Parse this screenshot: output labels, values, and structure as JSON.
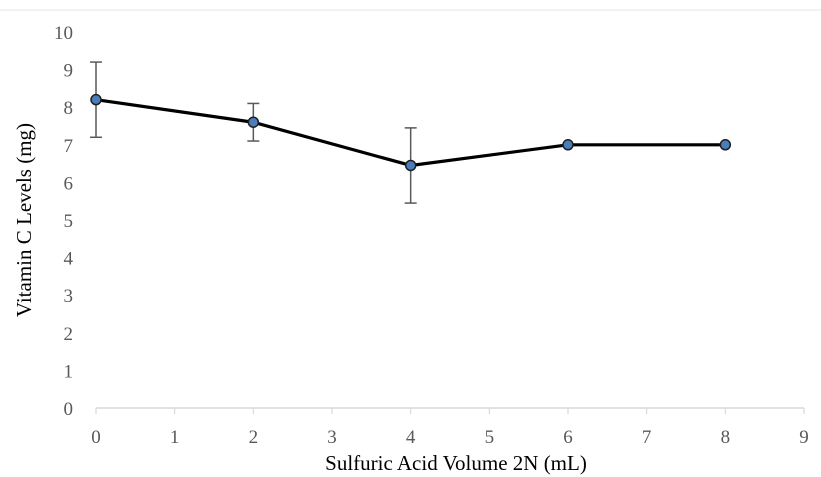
{
  "chart_data": {
    "type": "line",
    "xlabel": "Sulfuric Acid Volume 2N (mL)",
    "ylabel": "Vitamin C Levels (mg)",
    "xlim": [
      0,
      9
    ],
    "ylim": [
      0,
      10
    ],
    "xticks": [
      0,
      1,
      2,
      3,
      4,
      5,
      6,
      7,
      8,
      9
    ],
    "yticks": [
      0,
      1,
      2,
      3,
      4,
      5,
      6,
      7,
      8,
      9,
      10
    ],
    "grid": false,
    "legend": "none",
    "series": [
      {
        "x": [
          0,
          2,
          4,
          6,
          8
        ],
        "y": [
          8.2,
          7.6,
          6.45,
          7.0,
          7.0
        ],
        "error": [
          1.0,
          0.5,
          1.0,
          0,
          0
        ],
        "line_color": "#000000",
        "marker_color": "#4a7ebb"
      }
    ]
  },
  "colors": {
    "axis": "#d9d9d9",
    "error_bar": "#595959",
    "top_line": "#e6e6e6"
  }
}
